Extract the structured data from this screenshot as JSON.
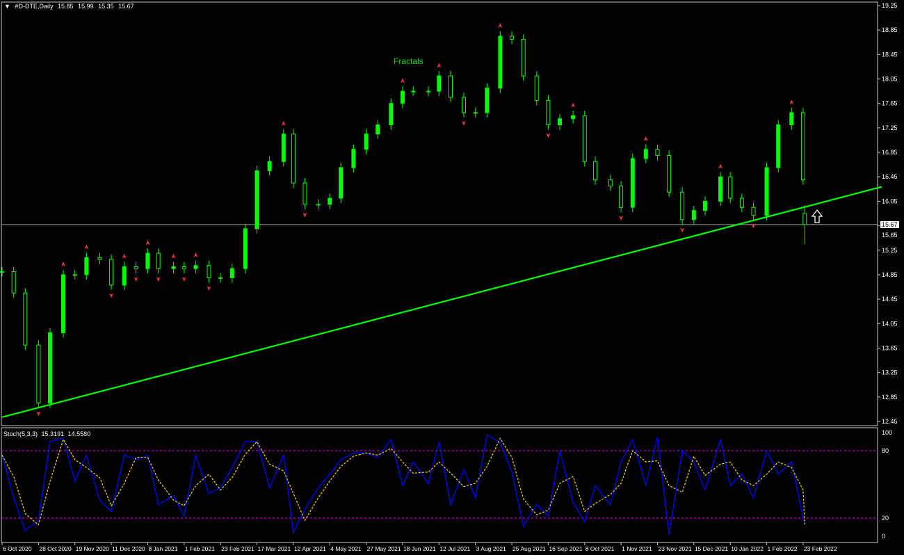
{
  "header": {
    "collapse_icon": "triangle-down-icon",
    "symbol": "#D-DTE,Daily",
    "open": "15.85",
    "high": "15.99",
    "low": "15.35",
    "close": "15.67"
  },
  "indicator_label": {
    "name": "Stoch(5,3,3)",
    "main_value": "15.3191",
    "signal_value": "14.5580"
  },
  "fractals_label": "Fractals",
  "last_price_label": "15.67",
  "arrow_icon": "up-arrow-outline-icon",
  "colors": {
    "background": "#000000",
    "candle": "#00ff00",
    "trendline": "#00ff00",
    "fractal": "#e8344a",
    "stoch_main": "#0000ff",
    "stoch_signal": "#ffd700",
    "levels": "#ff00ff",
    "price_line": "#a0a0a0"
  },
  "chart_data": [
    {
      "type": "candlestick",
      "title": "#D-DTE,Daily",
      "ylim": [
        12.45,
        19.25
      ],
      "y_ticks": [
        "19.25",
        "18.85",
        "18.45",
        "18.05",
        "17.65",
        "17.25",
        "16.85",
        "16.45",
        "16.05",
        "15.65",
        "15.25",
        "14.85",
        "14.45",
        "14.05",
        "13.65",
        "13.25",
        "12.85",
        "12.45"
      ],
      "x_ticks": [
        {
          "label": "6 Oct 2020",
          "date": "2020-10-06"
        },
        {
          "label": "28 Oct 2020",
          "date": "2020-10-28"
        },
        {
          "label": "19 Nov 2020",
          "date": "2020-11-19"
        },
        {
          "label": "11 Dec 2020",
          "date": "2020-12-11"
        },
        {
          "label": "8 Jan 2021",
          "date": "2021-01-08"
        },
        {
          "label": "1 Feb 2021",
          "date": "2021-02-01"
        },
        {
          "label": "23 Feb 2021",
          "date": "2021-02-23"
        },
        {
          "label": "17 Mar 2021",
          "date": "2021-03-17"
        },
        {
          "label": "12 Apr 2021",
          "date": "2021-04-12"
        },
        {
          "label": "4 May 2021",
          "date": "2021-05-04"
        },
        {
          "label": "27 May 2021",
          "date": "2021-05-27"
        },
        {
          "label": "18 Jun 2021",
          "date": "2021-06-18"
        },
        {
          "label": "12 Jul 2021",
          "date": "2021-07-12"
        },
        {
          "label": "3 Aug 2021",
          "date": "2021-08-03"
        },
        {
          "label": "25 Aug 2021",
          "date": "2021-08-25"
        },
        {
          "label": "16 Sep 2021",
          "date": "2021-09-16"
        },
        {
          "label": "8 Oct 2021",
          "date": "2021-10-08"
        },
        {
          "label": "1 Nov 2021",
          "date": "2021-11-01"
        },
        {
          "label": "23 Nov 2021",
          "date": "2021-11-23"
        },
        {
          "label": "15 Dec 2021",
          "date": "2021-12-15"
        },
        {
          "label": "10 Jan 2022",
          "date": "2022-01-10"
        },
        {
          "label": "1 Feb 2022",
          "date": "2022-02-01"
        },
        {
          "label": "23 Feb 2022",
          "date": "2022-02-23"
        }
      ],
      "dates": [
        "2020-10-06",
        "2020-10-13",
        "2020-10-20",
        "2020-10-28",
        "2020-11-04",
        "2020-11-12",
        "2020-11-19",
        "2020-11-26",
        "2020-12-04",
        "2020-12-11",
        "2020-12-21",
        "2020-12-30",
        "2021-01-08",
        "2021-01-15",
        "2021-01-25",
        "2021-02-01",
        "2021-02-08",
        "2021-02-16",
        "2021-02-23",
        "2021-03-02",
        "2021-03-10",
        "2021-03-17",
        "2021-03-26",
        "2021-04-05",
        "2021-04-12",
        "2021-04-19",
        "2021-04-27",
        "2021-05-04",
        "2021-05-11",
        "2021-05-19",
        "2021-05-27",
        "2021-06-03",
        "2021-06-11",
        "2021-06-18",
        "2021-06-25",
        "2021-07-05",
        "2021-07-12",
        "2021-07-19",
        "2021-07-27",
        "2021-08-03",
        "2021-08-10",
        "2021-08-18",
        "2021-08-25",
        "2021-09-01",
        "2021-09-09",
        "2021-09-16",
        "2021-09-23",
        "2021-10-01",
        "2021-10-08",
        "2021-10-15",
        "2021-10-25",
        "2021-11-01",
        "2021-11-08",
        "2021-11-16",
        "2021-11-23",
        "2021-11-30",
        "2021-12-08",
        "2021-12-15",
        "2021-12-23",
        "2022-01-03",
        "2022-01-10",
        "2022-01-17",
        "2022-01-24",
        "2022-02-01",
        "2022-02-08",
        "2022-02-16",
        "2022-02-23",
        "2022-02-24"
      ],
      "close": [
        14.9,
        14.55,
        13.7,
        12.75,
        13.9,
        14.85,
        14.85,
        15.13,
        15.1,
        14.68,
        14.98,
        14.95,
        15.2,
        14.95,
        14.98,
        14.95,
        15.0,
        14.8,
        14.8,
        14.95,
        15.6,
        16.55,
        16.7,
        17.15,
        16.35,
        16.0,
        16.0,
        16.1,
        16.6,
        16.9,
        17.15,
        17.3,
        17.65,
        17.85,
        17.85,
        17.85,
        18.1,
        17.75,
        17.5,
        17.5,
        17.9,
        18.75,
        18.7,
        18.1,
        17.7,
        17.3,
        17.4,
        17.45,
        16.7,
        16.4,
        16.3,
        15.95,
        16.75,
        16.9,
        16.8,
        16.2,
        15.75,
        15.9,
        16.05,
        16.45,
        16.1,
        15.95,
        15.82,
        16.6,
        17.3,
        17.5,
        16.4,
        15.67
      ],
      "last_bar": {
        "date": "2022-02-24",
        "open": 15.85,
        "high": 15.99,
        "low": 15.35,
        "close": 15.67
      },
      "horizontal_line": 15.67,
      "trendline": [
        [
          "2020-10-06",
          12.52
        ],
        [
          "2022-02-23",
          15.95
        ]
      ]
    },
    {
      "type": "line",
      "title": "Stoch(5,3,3)",
      "ylim": [
        0,
        100
      ],
      "y_ticks": [
        "100",
        "80",
        "20",
        "0"
      ],
      "levels": [
        20,
        80
      ],
      "series": [
        {
          "name": "15.3191",
          "values": [
            76,
            38,
            9,
            18,
            88,
            91,
            53,
            76,
            36,
            26,
            76,
            72,
            76,
            32,
            40,
            22,
            76,
            42,
            47,
            65,
            88,
            88,
            47,
            76,
            7,
            28,
            47,
            59,
            72,
            78,
            78,
            74,
            90,
            49,
            70,
            51,
            88,
            32,
            63,
            38,
            94,
            87,
            61,
            13,
            32,
            22,
            80,
            34,
            17,
            49,
            32,
            70,
            90,
            49,
            92,
            5,
            80,
            70,
            45,
            90,
            49,
            59,
            38,
            80,
            59,
            70,
            20,
            15.32
          ]
        },
        {
          "name": "14.5580",
          "values": [
            76,
            57,
            24,
            14,
            53,
            90,
            72,
            65,
            56,
            31,
            51,
            74,
            74,
            54,
            36,
            31,
            49,
            59,
            45,
            56,
            77,
            88,
            68,
            62,
            42,
            18,
            38,
            53,
            66,
            75,
            78,
            76,
            82,
            70,
            60,
            61,
            70,
            60,
            48,
            51,
            66,
            91,
            74,
            37,
            23,
            27,
            51,
            57,
            26,
            33,
            41,
            51,
            80,
            70,
            71,
            49,
            43,
            75,
            58,
            68,
            70,
            54,
            49,
            59,
            70,
            65,
            45,
            14.56
          ]
        }
      ]
    }
  ]
}
